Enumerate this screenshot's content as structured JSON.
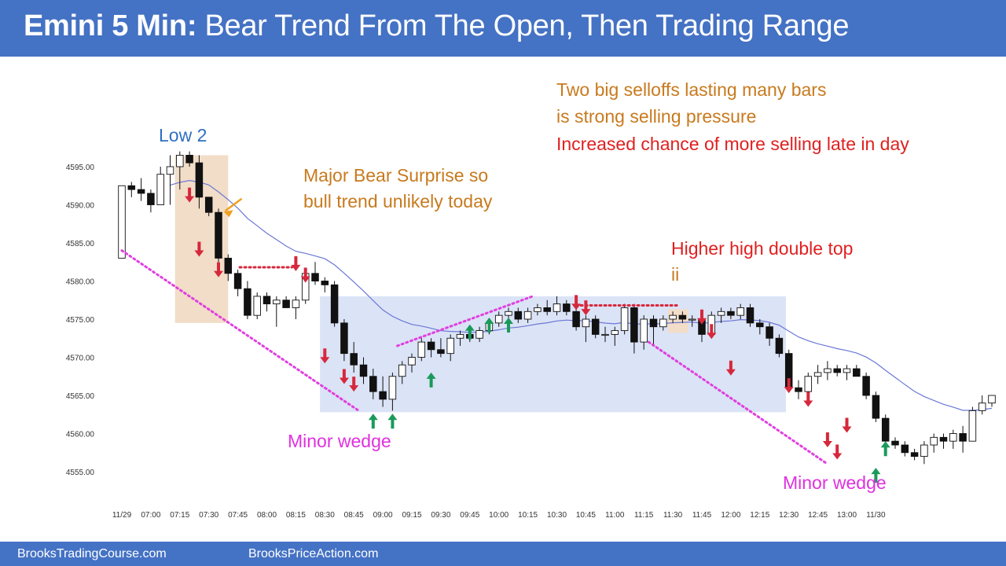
{
  "header": {
    "title_bold": "Emini 5 Min:",
    "title_rest": " Bear Trend From The Open, Then Trading Range"
  },
  "footer": {
    "link_left": "BrooksTradingCourse.com",
    "link_right": "BrooksPriceAction.com"
  },
  "colors": {
    "header": "#4472c4",
    "bull_arrow": "#1a9a5a",
    "bear_arrow": "#d6283c",
    "wedge_line": "#e040e0",
    "ema": "#6b78d6",
    "range_box": "#dbe3f6",
    "surprise_box": "#f2ddc8",
    "annotation_orange": "#c87a1e",
    "annotation_red": "#e02020",
    "annotation_magenta": "#e030e0",
    "annotation_blue": "#2f6fc0"
  },
  "chart_data": {
    "type": "candlestick",
    "title": "",
    "x_ticks": [
      "11/29",
      "07:00",
      "07:15",
      "07:30",
      "07:45",
      "08:00",
      "08:15",
      "08:30",
      "08:45",
      "09:00",
      "09:15",
      "09:30",
      "09:45",
      "10:00",
      "10:15",
      "10:30",
      "10:45",
      "11:00",
      "11:15",
      "11:30",
      "11:45",
      "12:00",
      "12:15",
      "12:30",
      "12:45",
      "13:00",
      "11/30"
    ],
    "y_ticks": [
      "4595.00",
      "4590.00",
      "4585.00",
      "4580.00",
      "4575.00",
      "4570.00",
      "4565.00",
      "4560.00",
      "4555.00"
    ],
    "ylim": [
      4554,
      4598
    ],
    "candles": [
      [
        4583.0,
        4592.5,
        4583.0,
        4592.5
      ],
      [
        4592.5,
        4593.0,
        4591.0,
        4592.0
      ],
      [
        4592.0,
        4593.5,
        4590.5,
        4591.5
      ],
      [
        4591.5,
        4592.0,
        4589.0,
        4590.0
      ],
      [
        4590.0,
        4595.0,
        4590.0,
        4594.0
      ],
      [
        4594.0,
        4596.5,
        4590.0,
        4595.0
      ],
      [
        4595.0,
        4597.0,
        4592.0,
        4596.5
      ],
      [
        4596.5,
        4597.0,
        4595.0,
        4595.5
      ],
      [
        4595.5,
        4596.5,
        4589.5,
        4591.0
      ],
      [
        4591.0,
        4591.0,
        4588.5,
        4589.0
      ],
      [
        4589.0,
        4589.5,
        4582.5,
        4583.0
      ],
      [
        4583.0,
        4583.5,
        4580.0,
        4581.0
      ],
      [
        4581.0,
        4581.5,
        4578.0,
        4579.0
      ],
      [
        4579.0,
        4580.0,
        4575.0,
        4575.5
      ],
      [
        4575.5,
        4578.5,
        4575.0,
        4578.0
      ],
      [
        4578.0,
        4578.5,
        4576.0,
        4577.0
      ],
      [
        4577.0,
        4578.0,
        4574.0,
        4577.5
      ],
      [
        4577.5,
        4578.0,
        4576.5,
        4576.5
      ],
      [
        4576.5,
        4578.0,
        4575.0,
        4577.5
      ],
      [
        4577.5,
        4581.5,
        4577.0,
        4581.0
      ],
      [
        4581.0,
        4582.5,
        4579.5,
        4580.0
      ],
      [
        4580.0,
        4580.5,
        4578.5,
        4579.5
      ],
      [
        4579.5,
        4580.0,
        4574.0,
        4574.5
      ],
      [
        4574.5,
        4575.0,
        4569.5,
        4570.5
      ],
      [
        4570.5,
        4572.0,
        4568.0,
        4569.0
      ],
      [
        4569.0,
        4570.0,
        4566.5,
        4567.5
      ],
      [
        4567.5,
        4568.5,
        4564.5,
        4565.5
      ],
      [
        4565.5,
        4567.5,
        4563.5,
        4564.5
      ],
      [
        4564.5,
        4568.0,
        4563.0,
        4567.5
      ],
      [
        4567.5,
        4569.5,
        4566.5,
        4569.0
      ],
      [
        4569.0,
        4570.5,
        4568.0,
        4570.0
      ],
      [
        4570.0,
        4572.5,
        4569.5,
        4572.0
      ],
      [
        4572.0,
        4572.5,
        4570.0,
        4571.0
      ],
      [
        4571.0,
        4572.5,
        4570.0,
        4570.5
      ],
      [
        4570.5,
        4573.0,
        4569.5,
        4572.5
      ],
      [
        4572.5,
        4573.5,
        4571.5,
        4573.0
      ],
      [
        4573.0,
        4573.5,
        4572.0,
        4572.5
      ],
      [
        4572.5,
        4574.0,
        4572.0,
        4573.5
      ],
      [
        4573.5,
        4575.0,
        4573.0,
        4574.5
      ],
      [
        4574.5,
        4576.0,
        4574.0,
        4575.5
      ],
      [
        4575.5,
        4576.5,
        4575.0,
        4576.0
      ],
      [
        4576.0,
        4576.5,
        4574.5,
        4575.0
      ],
      [
        4575.0,
        4576.5,
        4574.5,
        4576.0
      ],
      [
        4576.0,
        4577.0,
        4575.5,
        4576.5
      ],
      [
        4576.5,
        4577.5,
        4575.5,
        4576.0
      ],
      [
        4576.0,
        4578.0,
        4575.5,
        4577.0
      ],
      [
        4577.0,
        4577.5,
        4575.5,
        4576.0
      ],
      [
        4576.0,
        4576.5,
        4573.5,
        4574.0
      ],
      [
        4574.0,
        4575.5,
        4572.0,
        4575.0
      ],
      [
        4575.0,
        4575.5,
        4572.5,
        4573.0
      ],
      [
        4573.0,
        4574.0,
        4572.0,
        4573.0
      ],
      [
        4573.0,
        4574.0,
        4571.5,
        4573.5
      ],
      [
        4573.5,
        4577.0,
        4573.0,
        4576.5
      ],
      [
        4576.5,
        4577.0,
        4570.5,
        4572.0
      ],
      [
        4572.0,
        4575.5,
        4571.0,
        4575.0
      ],
      [
        4575.0,
        4575.5,
        4571.5,
        4574.0
      ],
      [
        4574.0,
        4575.5,
        4573.5,
        4575.0
      ],
      [
        4575.0,
        4576.0,
        4574.5,
        4575.5
      ],
      [
        4575.5,
        4576.0,
        4574.5,
        4575.0
      ],
      [
        4575.0,
        4575.5,
        4574.0,
        4575.0
      ],
      [
        4575.0,
        4575.5,
        4572.0,
        4573.0
      ],
      [
        4573.0,
        4576.0,
        4572.5,
        4575.5
      ],
      [
        4575.5,
        4576.5,
        4574.5,
        4576.0
      ],
      [
        4576.0,
        4576.5,
        4575.0,
        4575.5
      ],
      [
        4575.5,
        4577.0,
        4575.0,
        4576.5
      ],
      [
        4576.5,
        4577.0,
        4574.0,
        4574.5
      ],
      [
        4574.5,
        4575.0,
        4573.0,
        4574.0
      ],
      [
        4574.0,
        4574.5,
        4571.5,
        4572.5
      ],
      [
        4572.5,
        4573.0,
        4570.0,
        4570.5
      ],
      [
        4570.5,
        4571.0,
        4565.5,
        4566.0
      ],
      [
        4566.0,
        4567.0,
        4564.5,
        4565.5
      ],
      [
        4565.5,
        4568.0,
        4565.0,
        4567.5
      ],
      [
        4567.5,
        4569.0,
        4566.5,
        4568.0
      ],
      [
        4568.0,
        4569.5,
        4567.0,
        4568.5
      ],
      [
        4568.5,
        4569.0,
        4567.5,
        4568.0
      ],
      [
        4568.0,
        4569.0,
        4567.0,
        4568.5
      ],
      [
        4568.5,
        4569.0,
        4567.5,
        4567.5
      ],
      [
        4567.5,
        4568.0,
        4564.5,
        4565.0
      ],
      [
        4565.0,
        4565.5,
        4561.5,
        4562.0
      ],
      [
        4562.0,
        4562.5,
        4558.5,
        4559.0
      ],
      [
        4559.0,
        4559.5,
        4558.0,
        4558.5
      ],
      [
        4558.5,
        4559.0,
        4557.0,
        4557.5
      ],
      [
        4557.5,
        4558.0,
        4556.5,
        4557.0
      ],
      [
        4557.0,
        4559.0,
        4556.0,
        4558.5
      ],
      [
        4558.5,
        4560.0,
        4557.5,
        4559.5
      ],
      [
        4559.5,
        4560.0,
        4558.0,
        4559.0
      ],
      [
        4559.0,
        4560.5,
        4558.0,
        4560.0
      ],
      [
        4560.0,
        4561.0,
        4557.5,
        4559.0
      ],
      [
        4559.0,
        4563.5,
        4559.0,
        4563.0
      ],
      [
        4563.0,
        4565.0,
        4562.5,
        4564.0
      ],
      [
        4564.0,
        4565.0,
        4563.5,
        4565.0
      ]
    ],
    "annotations": [
      "Low 2",
      "Major Bear Surprise so",
      "bull trend unlikely today",
      "Two big selloffs lasting many bars",
      "is strong selling pressure",
      "Increased chance of more selling late in day",
      "Higher high double top",
      "ii",
      "Minor wedge",
      "Minor wedge"
    ]
  }
}
